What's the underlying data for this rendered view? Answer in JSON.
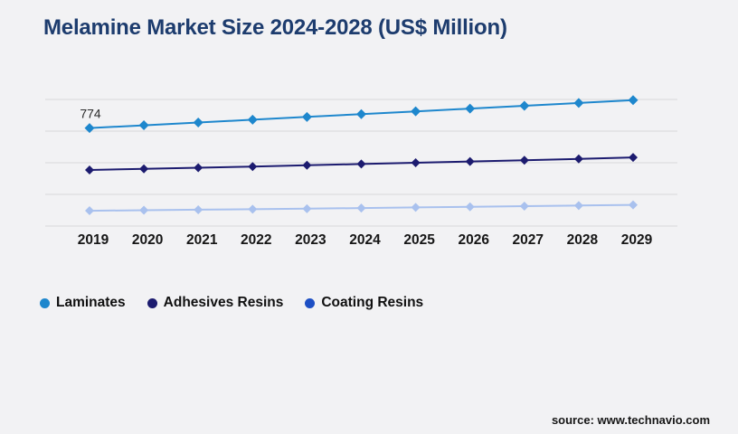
{
  "title": "Melamine Market Size 2024-2028 (US$ Million)",
  "source": "source: www.technavio.com",
  "colors": {
    "background": "#f2f2f4",
    "title": "#1d3c6e",
    "gridline": "#d8d8da",
    "axis_label": "#161616",
    "annotation": "#2b2b2b",
    "laminates": "#1e87cd",
    "adhesives_resins": "#1c1b6f",
    "coating_resins_legend": "#1d4fc4",
    "coating_resins_line": "#a9c1ee"
  },
  "chart_data": {
    "type": "line",
    "title": "Melamine Market Size 2024-2028 (US$ Million)",
    "categories": [
      "2019",
      "2020",
      "2021",
      "2022",
      "2023",
      "2024",
      "2025",
      "2026",
      "2027",
      "2028",
      "2029"
    ],
    "series": [
      {
        "name": "Laminates",
        "color": "#1e87cd",
        "line_color": "#1e87cd",
        "values": [
          774,
          796,
          818,
          840,
          862,
          884,
          906,
          928,
          950,
          972,
          995
        ]
      },
      {
        "name": "Adhesives Resins",
        "color": "#1c1b6f",
        "line_color": "#1c1b6f",
        "values": [
          443,
          452,
          461,
          470,
          480,
          490,
          500,
          510,
          520,
          530,
          542
        ]
      },
      {
        "name": "Coating Resins",
        "color": "#1d4fc4",
        "line_color": "#a9c1ee",
        "values": [
          121,
          125,
          129,
          133,
          137,
          142,
          147,
          152,
          157,
          162,
          167
        ]
      }
    ],
    "xlabel": "",
    "ylabel": "",
    "ylim": [
      0,
      1000
    ],
    "grid": true,
    "gridline_count": 5,
    "y_axis_labels_visible": false,
    "legend_position": "bottom-left",
    "marker": "diamond",
    "annotations": [
      {
        "text": "774",
        "series_index": 0,
        "point_index": 0
      }
    ]
  },
  "legend": {
    "items": [
      {
        "label": "Laminates",
        "color": "#1e87cd"
      },
      {
        "label": "Adhesives Resins",
        "color": "#1c1b6f"
      },
      {
        "label": "Coating Resins",
        "color": "#1d4fc4"
      }
    ]
  }
}
